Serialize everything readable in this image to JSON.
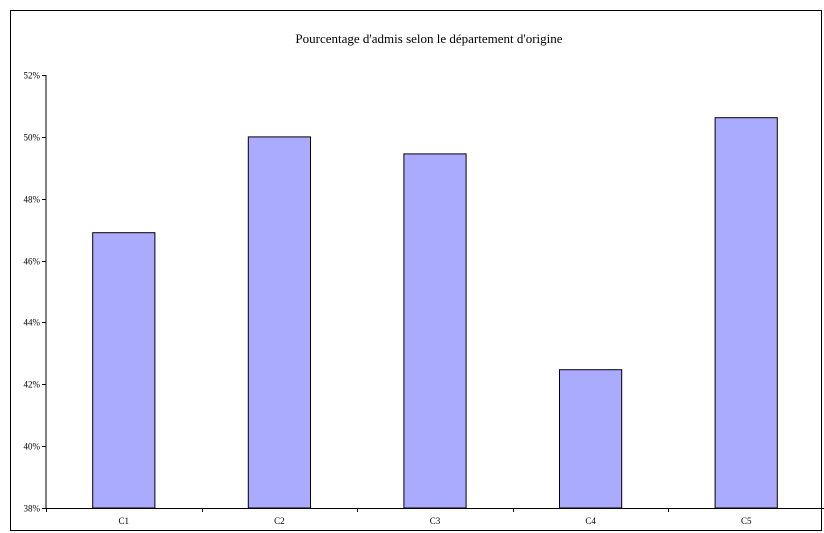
{
  "chart_data": {
    "type": "bar",
    "title": "Pourcentage d'admis selon le département d'origine",
    "xlabel": "",
    "ylabel": "",
    "categories": [
      "C1",
      "C2",
      "C3",
      "C4",
      "C5"
    ],
    "values": [
      46.9,
      50.0,
      49.45,
      42.47,
      50.62
    ],
    "yticks": [
      "38%",
      "40%",
      "42%",
      "44%",
      "46%",
      "48%",
      "50%",
      "52%"
    ],
    "ylim": [
      38,
      52
    ],
    "grid": false,
    "legend": "none",
    "colors": {
      "bar_fill": "#aaaaff",
      "bar_stroke": "#000000",
      "axis": "#000000"
    }
  }
}
